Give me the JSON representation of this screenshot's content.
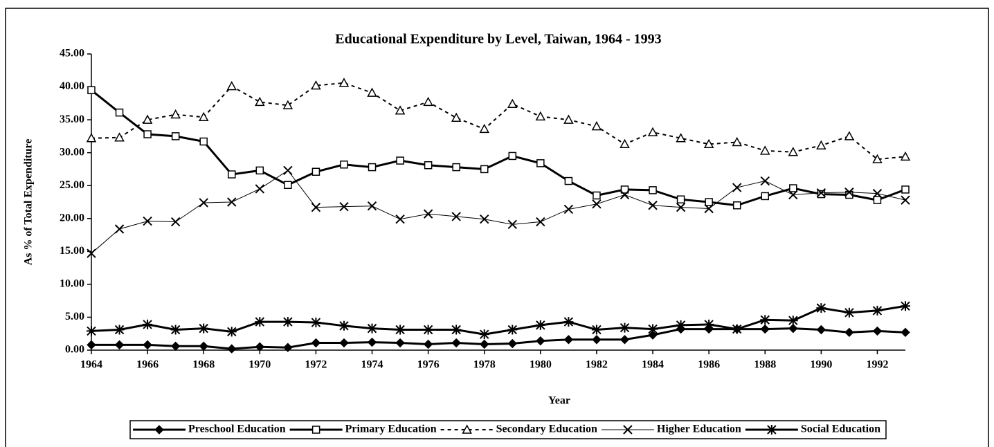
{
  "chart_data": {
    "type": "line",
    "title": "Educational Expenditure by Level, Taiwan, 1964 - 1993",
    "x_label": "Year",
    "y_label": "As % of Total Expenditure",
    "x": [
      1964,
      1965,
      1966,
      1967,
      1968,
      1969,
      1970,
      1971,
      1972,
      1973,
      1974,
      1975,
      1976,
      1977,
      1978,
      1979,
      1980,
      1981,
      1982,
      1983,
      1984,
      1985,
      1986,
      1987,
      1988,
      1989,
      1990,
      1991,
      1992,
      1993
    ],
    "xlim": [
      1964,
      1993
    ],
    "xticks": [
      1964,
      1966,
      1968,
      1970,
      1972,
      1974,
      1976,
      1978,
      1980,
      1982,
      1984,
      1986,
      1988,
      1990,
      1992
    ],
    "ylim": [
      0,
      45
    ],
    "yticks": [
      {
        "value": 0,
        "label": "0.00"
      },
      {
        "value": 5,
        "label": "5.00"
      },
      {
        "value": 10,
        "label": "10.00"
      },
      {
        "value": 15,
        "label": "15.00"
      },
      {
        "value": 20,
        "label": "20.00"
      },
      {
        "value": 25,
        "label": "25.00"
      },
      {
        "value": 30,
        "label": "30.00"
      },
      {
        "value": 35,
        "label": "35.00"
      },
      {
        "value": 40,
        "label": "40.00"
      },
      {
        "value": 45,
        "label": "45.00"
      }
    ],
    "legend": "bottom",
    "series": [
      {
        "name": "Preschool Education",
        "color": "#000000",
        "marker": "diamond",
        "dash": "solid",
        "width": 3,
        "values": [
          0.8,
          0.8,
          0.8,
          0.6,
          0.6,
          0.2,
          0.5,
          0.4,
          1.1,
          1.1,
          1.2,
          1.1,
          0.9,
          1.1,
          0.9,
          1.0,
          1.4,
          1.6,
          1.6,
          1.6,
          2.3,
          3.2,
          3.2,
          3.2,
          3.2,
          3.3,
          3.1,
          2.7,
          2.9,
          2.7
        ]
      },
      {
        "name": "Primary Education",
        "color": "#000000",
        "marker": "square",
        "dash": "solid",
        "width": 3,
        "values": [
          39.5,
          36.1,
          32.8,
          32.5,
          31.7,
          26.7,
          27.3,
          25.1,
          27.1,
          28.2,
          27.8,
          28.8,
          28.1,
          27.8,
          27.5,
          29.5,
          28.4,
          25.7,
          23.5,
          24.4,
          24.3,
          22.9,
          22.5,
          22.0,
          23.4,
          24.6,
          23.7,
          23.6,
          22.8,
          24.4
        ]
      },
      {
        "name": "Secondary Education",
        "color": "#000000",
        "marker": "triangle",
        "dash": "dashed",
        "width": 2,
        "values": [
          32.2,
          32.3,
          35.0,
          35.8,
          35.4,
          40.1,
          37.7,
          37.2,
          40.2,
          40.6,
          39.1,
          36.4,
          37.7,
          35.3,
          33.6,
          37.4,
          35.5,
          35.0,
          34.0,
          31.3,
          33.1,
          32.2,
          31.3,
          31.6,
          30.3,
          30.1,
          31.1,
          32.5,
          29.0,
          29.4
        ]
      },
      {
        "name": "Higher Education",
        "color": "#000000",
        "marker": "x",
        "dash": "solid",
        "width": 1,
        "values": [
          14.7,
          18.4,
          19.6,
          19.5,
          22.4,
          22.5,
          24.5,
          27.3,
          21.7,
          21.8,
          21.9,
          19.9,
          20.7,
          20.3,
          19.9,
          19.1,
          19.5,
          21.4,
          22.2,
          23.6,
          22.0,
          21.7,
          21.5,
          24.7,
          25.7,
          23.6,
          23.9,
          24.0,
          23.8,
          22.8
        ]
      },
      {
        "name": "Social Education",
        "color": "#000000",
        "marker": "asterisk",
        "dash": "solid",
        "width": 3,
        "values": [
          2.9,
          3.1,
          3.9,
          3.1,
          3.3,
          2.8,
          4.3,
          4.3,
          4.2,
          3.7,
          3.3,
          3.1,
          3.1,
          3.1,
          2.4,
          3.1,
          3.8,
          4.3,
          3.1,
          3.4,
          3.2,
          3.8,
          3.9,
          3.2,
          4.6,
          4.5,
          6.4,
          5.7,
          6.0,
          6.7
        ]
      }
    ]
  }
}
